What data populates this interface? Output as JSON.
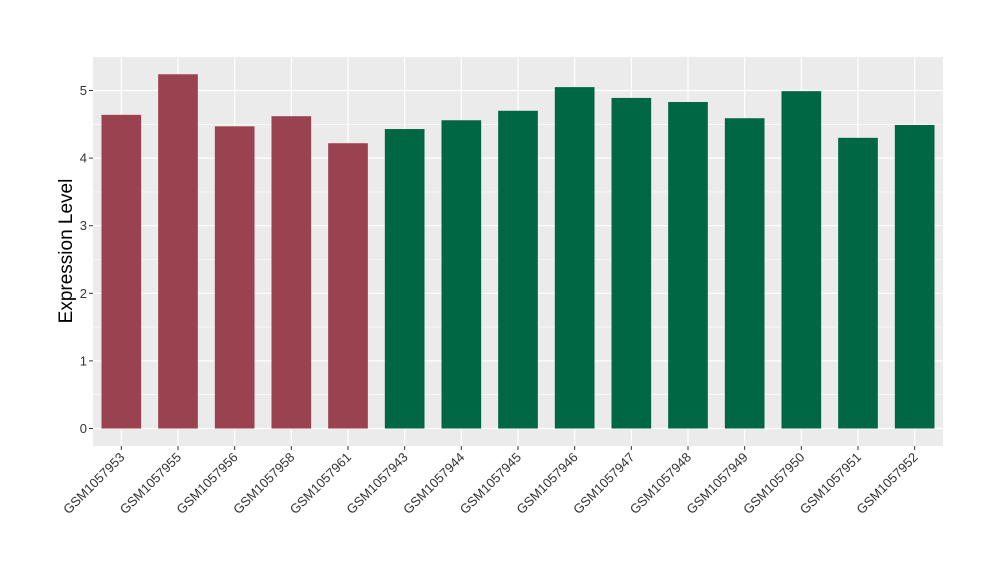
{
  "chart_data": {
    "type": "bar",
    "title": "",
    "xlabel": "",
    "ylabel": "Expression Level",
    "ylim": [
      -0.25,
      5.5
    ],
    "yticks": [
      0,
      1,
      2,
      3,
      4,
      5
    ],
    "grid": true,
    "legend": "none",
    "categories": [
      "GSM1057953",
      "GSM1057955",
      "GSM1057956",
      "GSM1057958",
      "GSM1057961",
      "GSM1057943",
      "GSM1057944",
      "GSM1057945",
      "GSM1057946",
      "GSM1057947",
      "GSM1057948",
      "GSM1057949",
      "GSM1057950",
      "GSM1057951",
      "GSM1057952"
    ],
    "values": [
      4.64,
      5.24,
      4.47,
      4.62,
      4.22,
      4.43,
      4.56,
      4.7,
      5.05,
      4.89,
      4.83,
      4.59,
      4.99,
      4.3,
      4.49
    ],
    "bar_colors": [
      "#9b4250",
      "#9b4250",
      "#9b4250",
      "#9b4250",
      "#9b4250",
      "#006744",
      "#006744",
      "#006744",
      "#006744",
      "#006744",
      "#006744",
      "#006744",
      "#006744",
      "#006744",
      "#006744"
    ],
    "panel_color": "#ebebeb",
    "grid_color": "#ffffff"
  }
}
